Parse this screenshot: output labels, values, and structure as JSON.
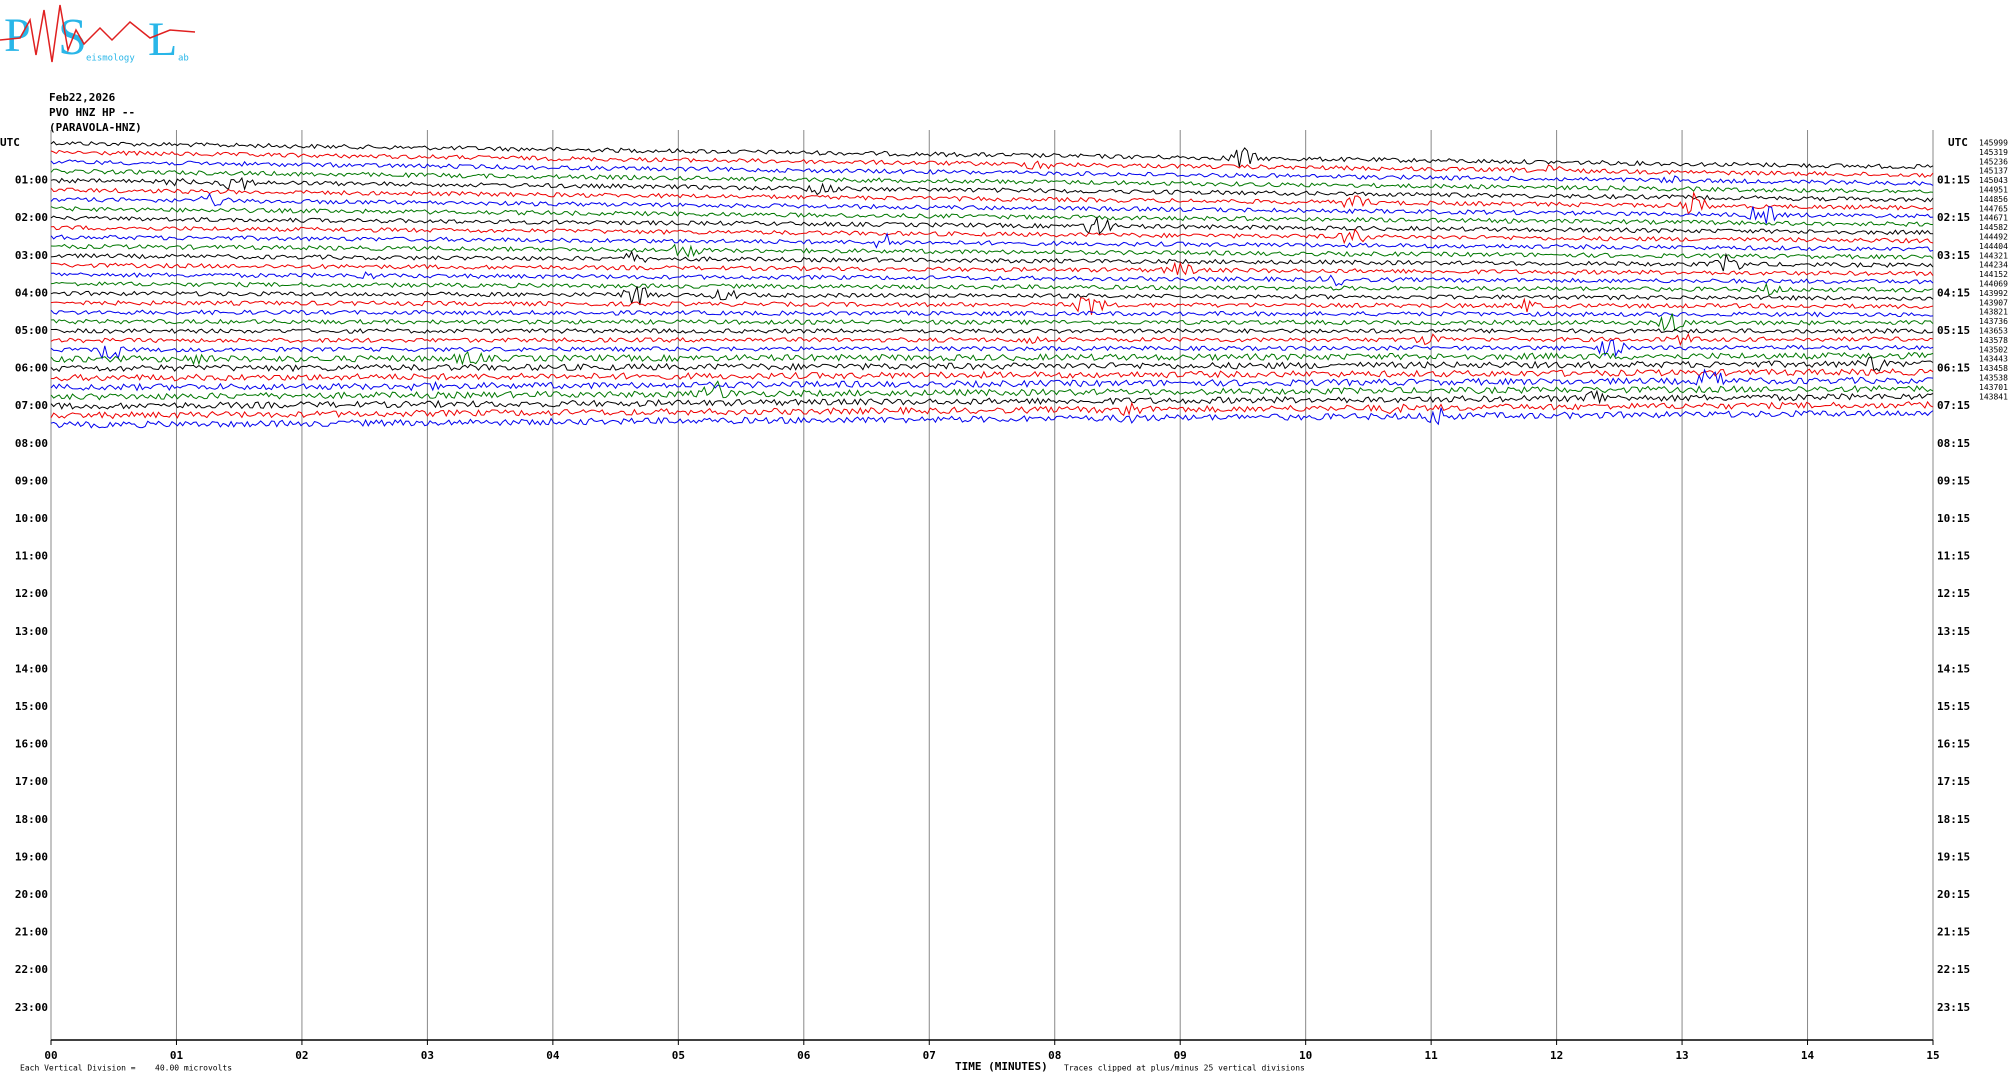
{
  "logo": {
    "letters": [
      "P",
      "S",
      "L"
    ],
    "words": [
      "eismology",
      "ab"
    ]
  },
  "header": {
    "date": "Feb22,2026",
    "station": "PVO HNZ HP --",
    "name": "(PARAVOLA-HNZ)"
  },
  "left_axis": {
    "title": "UTC",
    "labels": [
      "01:00",
      "02:00",
      "03:00",
      "04:00",
      "05:00",
      "06:00",
      "07:00",
      "08:00",
      "09:00",
      "10:00",
      "11:00",
      "12:00",
      "13:00",
      "14:00",
      "15:00",
      "16:00",
      "17:00",
      "18:00",
      "19:00",
      "20:00",
      "21:00",
      "22:00",
      "23:00"
    ]
  },
  "right_axis": {
    "title": "UTC",
    "labels": [
      "01:15",
      "02:15",
      "03:15",
      "04:15",
      "05:15",
      "06:15",
      "07:15",
      "08:15",
      "09:15",
      "10:15",
      "11:15",
      "12:15",
      "13:15",
      "14:15",
      "15:15",
      "16:15",
      "17:15",
      "18:15",
      "19:15",
      "20:15",
      "21:15",
      "22:15",
      "23:15"
    ],
    "counts": [
      "145999",
      "145319",
      "145236",
      "145137",
      "145043",
      "144951",
      "144856",
      "144765",
      "144671",
      "144582",
      "144492",
      "144404",
      "144321",
      "144234",
      "144152",
      "144069",
      "143992",
      "143907",
      "143821",
      "143736",
      "143653",
      "143578",
      "143502",
      "143443",
      "143458",
      "143538",
      "143701",
      "143841"
    ]
  },
  "x_axis": {
    "title": "TIME (MINUTES)",
    "labels": [
      "00",
      "01",
      "02",
      "03",
      "04",
      "05",
      "06",
      "07",
      "08",
      "09",
      "10",
      "11",
      "12",
      "13",
      "14",
      "15"
    ]
  },
  "footer": {
    "division": "Each Vertical Division =",
    "scale": "40.00 microvolts",
    "clip": "Traces clipped at plus/minus 25 vertical divisions"
  }
}
